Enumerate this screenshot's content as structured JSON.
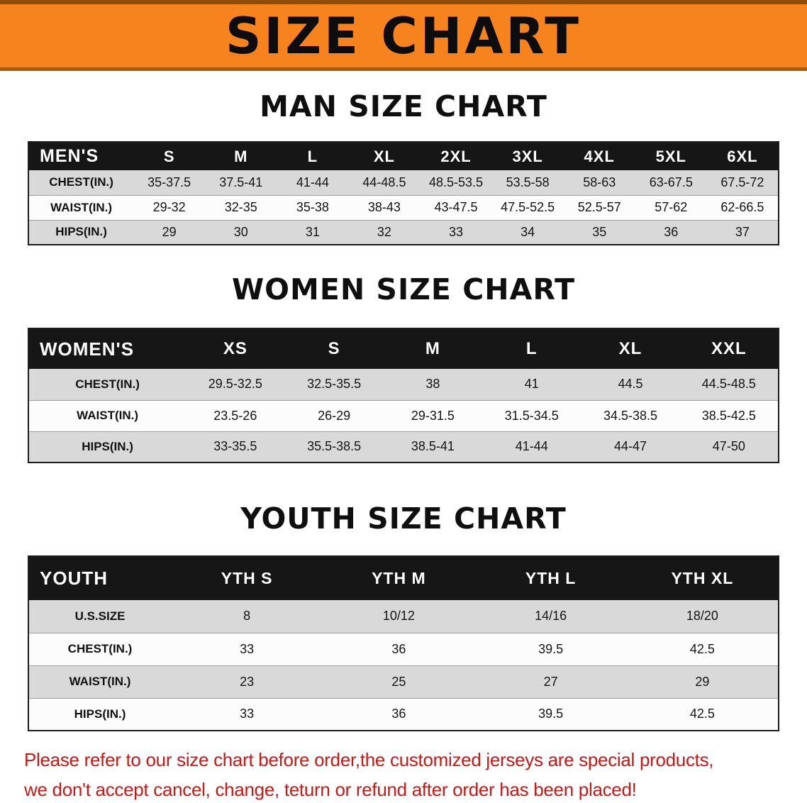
{
  "banner": {
    "title": "SIZE CHART",
    "bg_color": "#f6831d"
  },
  "theme": {
    "banner_orange": "#f6831d",
    "table_header_black": "#161616",
    "row_stripe_gray": "#d9d9d9",
    "note_red": "#cc1714"
  },
  "sections": [
    {
      "id": "men",
      "heading": "MAN SIZE CHART",
      "table": {
        "header": [
          "MEN'S",
          "S",
          "M",
          "L",
          "XL",
          "2XL",
          "3XL",
          "4XL",
          "5XL",
          "6XL"
        ],
        "rows": [
          [
            "CHEST(IN.)",
            "35-37.5",
            "37.5-41",
            "41-44",
            "44-48.5",
            "48.5-53.5",
            "53.5-58",
            "58-63",
            "63-67.5",
            "67.5-72"
          ],
          [
            "WAIST(IN.)",
            "29-32",
            "32-35",
            "35-38",
            "38-43",
            "43-47.5",
            "47.5-52.5",
            "52.5-57",
            "57-62",
            "62-66.5"
          ],
          [
            "HIPS(IN.)",
            "29",
            "30",
            "31",
            "32",
            "33",
            "34",
            "35",
            "36",
            "37"
          ]
        ]
      }
    },
    {
      "id": "women",
      "heading": "WOMEN SIZE CHART",
      "table": {
        "header": [
          "WOMEN'S",
          "XS",
          "S",
          "M",
          "L",
          "XL",
          "XXL"
        ],
        "rows": [
          [
            "CHEST(IN.)",
            "29.5-32.5",
            "32.5-35.5",
            "38",
            "41",
            "44.5",
            "44.5-48.5"
          ],
          [
            "WAIST(IN.)",
            "23.5-26",
            "26-29",
            "29-31.5",
            "31.5-34.5",
            "34.5-38.5",
            "38.5-42.5"
          ],
          [
            "HIPS(IN.)",
            "33-35.5",
            "35.5-38.5",
            "38.5-41",
            "41-44",
            "44-47",
            "47-50"
          ]
        ]
      }
    },
    {
      "id": "youth",
      "heading": "YOUTH SIZE CHART",
      "table": {
        "header": [
          "YOUTH",
          "YTH S",
          "YTH M",
          "YTH L",
          "YTH XL"
        ],
        "rows": [
          [
            "U.S.SIZE",
            "8",
            "10/12",
            "14/16",
            "18/20"
          ],
          [
            "CHEST(IN.)",
            "33",
            "36",
            "39.5",
            "42.5"
          ],
          [
            "WAIST(IN.)",
            "23",
            "25",
            "27",
            "29"
          ],
          [
            "HIPS(IN.)",
            "33",
            "36",
            "39.5",
            "42.5"
          ]
        ]
      }
    }
  ],
  "footer": {
    "lines": [
      "Please refer to our size chart before order,the customized jerseys are special products,",
      "we don't accept cancel, change, teturn or refund after order has been placed!"
    ]
  }
}
